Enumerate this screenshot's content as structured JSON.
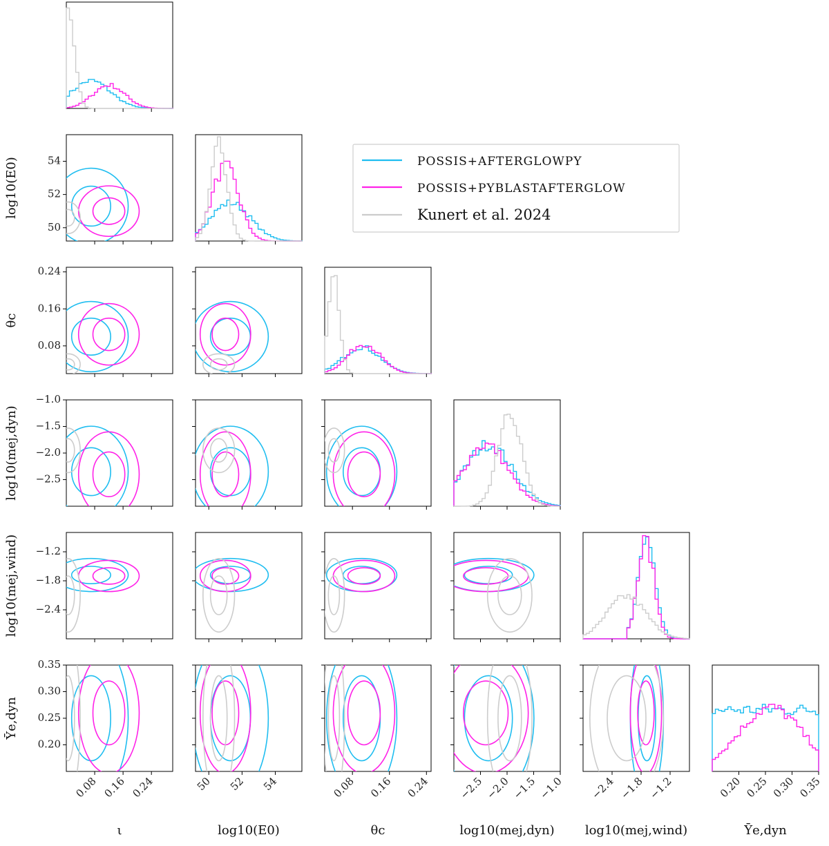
{
  "chart_data": {
    "type": "corner",
    "parameters": [
      {
        "id": "iota",
        "label": "ι",
        "range": [
          0.0,
          0.3
        ],
        "ticks": [
          0.08,
          0.16,
          0.24
        ],
        "tick_labels": [
          "0.08",
          "0.16",
          "0.24"
        ]
      },
      {
        "id": "logE0",
        "label": "log10(E0)",
        "range": [
          49.2,
          55.6
        ],
        "ticks": [
          50,
          52,
          54
        ],
        "tick_labels": [
          "50",
          "52",
          "54"
        ]
      },
      {
        "id": "thetac",
        "label": "θc",
        "range": [
          0.02,
          0.25
        ],
        "ticks": [
          0.08,
          0.16,
          0.24
        ],
        "tick_labels": [
          "0.08",
          "0.16",
          "0.24"
        ]
      },
      {
        "id": "logmdyn",
        "label": "log10(mej,dyn)",
        "range": [
          -3.0,
          -1.0
        ],
        "ticks": [
          -2.5,
          -2.0,
          -1.5,
          -1.0
        ],
        "tick_labels": [
          "−2.5",
          "−2.0",
          "−1.5",
          "−1.0"
        ]
      },
      {
        "id": "logmwind",
        "label": "log10(mej,wind)",
        "range": [
          -3.0,
          -0.8
        ],
        "ticks": [
          -2.4,
          -1.8,
          -1.2
        ],
        "tick_labels": [
          "−2.4",
          "−1.8",
          "−1.2"
        ]
      },
      {
        "id": "Ye",
        "label": "Ȳe,dyn",
        "range": [
          0.15,
          0.35
        ],
        "ticks": [
          0.2,
          0.25,
          0.3,
          0.35
        ],
        "tick_labels": [
          "0.20",
          "0.25",
          "0.30",
          "0.35"
        ]
      }
    ],
    "series": [
      {
        "name": "POSSIS+AFTERGLOWPY",
        "color": "#1ebdf0",
        "marginals": [
          {
            "mean": 0.07,
            "sd": 0.055,
            "lo": 0.0,
            "hi": 0.3,
            "peak": 0.26
          },
          {
            "mean": 51.3,
            "sd": 1.2,
            "lo": 49.2,
            "hi": 55.6,
            "peak": 0.36
          },
          {
            "mean": 0.1,
            "sd": 0.04,
            "lo": 0.02,
            "hi": 0.25,
            "peak": 0.25
          },
          {
            "mean": -2.35,
            "sd": 0.45,
            "lo": -3.0,
            "hi": -1.0,
            "peak": 0.58
          },
          {
            "mean": -1.68,
            "sd": 0.18,
            "lo": -2.1,
            "hi": -0.8,
            "peak": 0.95
          },
          {
            "mean": 0.25,
            "sd": 1.0,
            "lo": 0.15,
            "hi": 0.35,
            "peak": 0.58
          }
        ]
      },
      {
        "name": "POSSIS+PYBLASTAFTERGLOW",
        "color": "#ff22e8",
        "marginals": [
          {
            "mean": 0.12,
            "sd": 0.045,
            "lo": 0.0,
            "hi": 0.3,
            "peak": 0.22
          },
          {
            "mean": 51.0,
            "sd": 0.8,
            "lo": 49.2,
            "hi": 55.6,
            "peak": 0.7
          },
          {
            "mean": 0.105,
            "sd": 0.035,
            "lo": 0.02,
            "hi": 0.25,
            "peak": 0.28
          },
          {
            "mean": -2.4,
            "sd": 0.42,
            "lo": -3.0,
            "hi": -1.0,
            "peak": 0.58
          },
          {
            "mean": -1.7,
            "sd": 0.17,
            "lo": -2.1,
            "hi": -0.8,
            "peak": 0.92
          },
          {
            "mean": 0.26,
            "sd": 0.06,
            "lo": 0.15,
            "hi": 0.35,
            "peak": 0.6
          }
        ]
      },
      {
        "name": "Kunert et al. 2024",
        "color": "#cccccc",
        "marginals": [
          {
            "mean": 0.005,
            "sd": 0.018,
            "lo": 0.0,
            "hi": 0.3,
            "peak": 0.92
          },
          {
            "mean": 50.6,
            "sd": 0.5,
            "lo": 49.2,
            "hi": 55.6,
            "peak": 0.9
          },
          {
            "mean": 0.04,
            "sd": 0.012,
            "lo": 0.02,
            "hi": 0.25,
            "peak": 0.88
          },
          {
            "mean": -1.95,
            "sd": 0.22,
            "lo": -3.0,
            "hi": -1.0,
            "peak": 0.92
          },
          {
            "mean": -2.1,
            "sd": 0.4,
            "lo": -3.0,
            "hi": -0.8,
            "peak": 0.4
          },
          {
            "mean": 0.25,
            "sd": 1.0,
            "lo": 0.15,
            "hi": 0.35,
            "peak": 0.0
          }
        ]
      }
    ],
    "legend": {
      "position": "upper-right",
      "entries": [
        "POSSIS+AFTERGLOWPY",
        "POSSIS+PYBLASTAFTERGLOW",
        "Kunert et al. 2024"
      ]
    },
    "grid": false
  }
}
